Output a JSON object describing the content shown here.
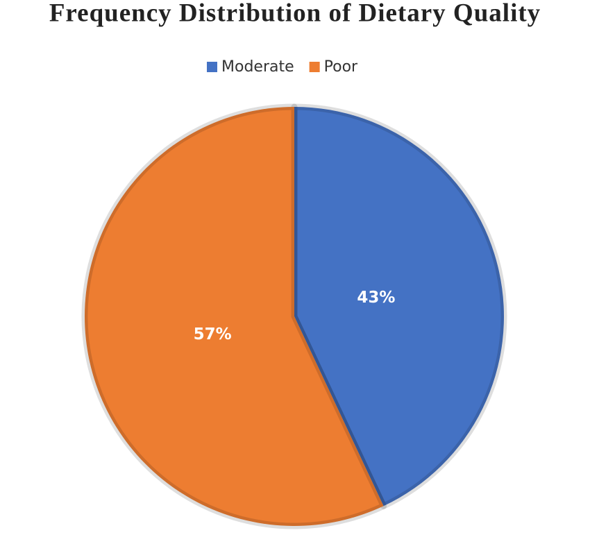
{
  "chart_data": {
    "type": "pie",
    "title": "Frequency Distribution of Dietary Quality",
    "categories": [
      "Moderate",
      "Poor"
    ],
    "values": [
      43,
      57
    ],
    "value_labels": [
      "43%",
      "57%"
    ],
    "colors": [
      "#4472c4",
      "#ed7d31"
    ],
    "legend": "top"
  }
}
